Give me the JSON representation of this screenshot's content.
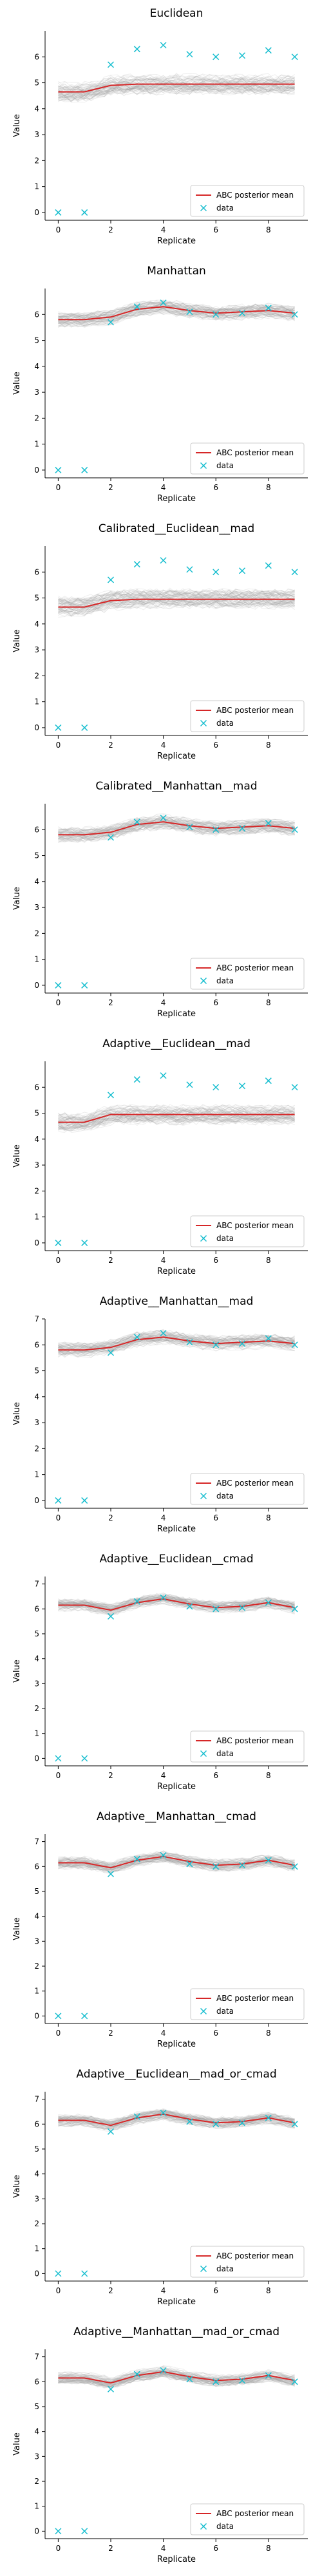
{
  "chart_data": [
    {
      "type": "line",
      "title": "Euclidean",
      "xlabel": "Replicate",
      "ylabel": "Value",
      "x": [
        0,
        1,
        2,
        3,
        4,
        5,
        6,
        7,
        8,
        9
      ],
      "xlim": [
        -0.5,
        9.5
      ],
      "ylim": [
        -0.3,
        7.0
      ],
      "xticks": [
        0,
        2,
        4,
        6,
        8
      ],
      "yticks": [
        0,
        1,
        2,
        3,
        4,
        5,
        6
      ],
      "series": [
        {
          "name": "ABC posterior mean",
          "values": [
            4.65,
            4.65,
            4.9,
            4.95,
            4.95,
            4.95,
            4.95,
            4.95,
            4.95,
            4.95
          ]
        },
        {
          "name": "data",
          "values": [
            0,
            0,
            5.7,
            6.3,
            6.45,
            6.1,
            6.0,
            6.05,
            6.25,
            6.0
          ]
        }
      ],
      "band": {
        "spread": 0.4
      },
      "grid": false,
      "legend": "lower-right"
    },
    {
      "type": "line",
      "title": "Manhattan",
      "xlabel": "Replicate",
      "ylabel": "Value",
      "x": [
        0,
        1,
        2,
        3,
        4,
        5,
        6,
        7,
        8,
        9
      ],
      "xlim": [
        -0.5,
        9.5
      ],
      "ylim": [
        -0.3,
        7.0
      ],
      "xticks": [
        0,
        2,
        4,
        6,
        8
      ],
      "yticks": [
        0,
        1,
        2,
        3,
        4,
        5,
        6
      ],
      "series": [
        {
          "name": "ABC posterior mean",
          "values": [
            5.8,
            5.8,
            5.9,
            6.2,
            6.3,
            6.15,
            6.05,
            6.1,
            6.15,
            6.05
          ]
        },
        {
          "name": "data",
          "values": [
            0,
            0,
            5.7,
            6.3,
            6.45,
            6.1,
            6.0,
            6.05,
            6.25,
            6.0
          ]
        }
      ],
      "band": {
        "spread": 0.3
      },
      "grid": false,
      "legend": "lower-right"
    },
    {
      "type": "line",
      "title": "Calibrated__Euclidean__mad",
      "xlabel": "Replicate",
      "ylabel": "Value",
      "x": [
        0,
        1,
        2,
        3,
        4,
        5,
        6,
        7,
        8,
        9
      ],
      "xlim": [
        -0.5,
        9.5
      ],
      "ylim": [
        -0.3,
        7.0
      ],
      "xticks": [
        0,
        2,
        4,
        6,
        8
      ],
      "yticks": [
        0,
        1,
        2,
        3,
        4,
        5,
        6
      ],
      "series": [
        {
          "name": "ABC posterior mean",
          "values": [
            4.65,
            4.65,
            4.9,
            4.95,
            4.95,
            4.95,
            4.95,
            4.95,
            4.95,
            4.95
          ]
        },
        {
          "name": "data",
          "values": [
            0,
            0,
            5.7,
            6.3,
            6.45,
            6.1,
            6.0,
            6.05,
            6.25,
            6.0
          ]
        }
      ],
      "band": {
        "spread": 0.4
      },
      "grid": false,
      "legend": "lower-right"
    },
    {
      "type": "line",
      "title": "Calibrated__Manhattan__mad",
      "xlabel": "Replicate",
      "ylabel": "Value",
      "x": [
        0,
        1,
        2,
        3,
        4,
        5,
        6,
        7,
        8,
        9
      ],
      "xlim": [
        -0.5,
        9.5
      ],
      "ylim": [
        -0.3,
        7.0
      ],
      "xticks": [
        0,
        2,
        4,
        6,
        8
      ],
      "yticks": [
        0,
        1,
        2,
        3,
        4,
        5,
        6
      ],
      "series": [
        {
          "name": "ABC posterior mean",
          "values": [
            5.8,
            5.8,
            5.9,
            6.2,
            6.3,
            6.15,
            6.05,
            6.1,
            6.15,
            6.05
          ]
        },
        {
          "name": "data",
          "values": [
            0,
            0,
            5.7,
            6.3,
            6.45,
            6.1,
            6.0,
            6.05,
            6.25,
            6.0
          ]
        }
      ],
      "band": {
        "spread": 0.3
      },
      "grid": false,
      "legend": "lower-right"
    },
    {
      "type": "line",
      "title": "Adaptive__Euclidean__mad",
      "xlabel": "Replicate",
      "ylabel": "Value",
      "x": [
        0,
        1,
        2,
        3,
        4,
        5,
        6,
        7,
        8,
        9
      ],
      "xlim": [
        -0.5,
        9.5
      ],
      "ylim": [
        -0.3,
        7.0
      ],
      "xticks": [
        0,
        2,
        4,
        6,
        8
      ],
      "yticks": [
        0,
        1,
        2,
        3,
        4,
        5,
        6
      ],
      "series": [
        {
          "name": "ABC posterior mean",
          "values": [
            4.65,
            4.65,
            4.95,
            4.95,
            4.95,
            4.95,
            4.95,
            4.95,
            4.95,
            4.95
          ]
        },
        {
          "name": "data",
          "values": [
            0,
            0,
            5.7,
            6.3,
            6.45,
            6.1,
            6.0,
            6.05,
            6.25,
            6.0
          ]
        }
      ],
      "band": {
        "spread": 0.4
      },
      "grid": false,
      "legend": "lower-right"
    },
    {
      "type": "line",
      "title": "Adaptive__Manhattan__mad",
      "xlabel": "Replicate",
      "ylabel": "Value",
      "x": [
        0,
        1,
        2,
        3,
        4,
        5,
        6,
        7,
        8,
        9
      ],
      "xlim": [
        -0.5,
        9.5
      ],
      "ylim": [
        -0.3,
        7.0
      ],
      "xticks": [
        0,
        2,
        4,
        6,
        8
      ],
      "yticks": [
        0,
        1,
        2,
        3,
        4,
        5,
        6,
        7
      ],
      "series": [
        {
          "name": "ABC posterior mean",
          "values": [
            5.8,
            5.8,
            5.9,
            6.2,
            6.3,
            6.15,
            6.05,
            6.1,
            6.15,
            6.05
          ]
        },
        {
          "name": "data",
          "values": [
            0,
            0,
            5.7,
            6.3,
            6.45,
            6.1,
            6.0,
            6.05,
            6.25,
            6.0
          ]
        }
      ],
      "band": {
        "spread": 0.3
      },
      "grid": false,
      "legend": "lower-right"
    },
    {
      "type": "line",
      "title": "Adaptive__Euclidean__cmad",
      "xlabel": "Replicate",
      "ylabel": "Value",
      "x": [
        0,
        1,
        2,
        3,
        4,
        5,
        6,
        7,
        8,
        9
      ],
      "xlim": [
        -0.5,
        9.5
      ],
      "ylim": [
        -0.3,
        7.3
      ],
      "xticks": [
        0,
        2,
        4,
        6,
        8
      ],
      "yticks": [
        0,
        1,
        2,
        3,
        4,
        5,
        6,
        7
      ],
      "series": [
        {
          "name": "ABC posterior mean",
          "values": [
            6.15,
            6.15,
            5.95,
            6.25,
            6.4,
            6.2,
            6.05,
            6.1,
            6.25,
            6.05
          ]
        },
        {
          "name": "data",
          "values": [
            0,
            0,
            5.7,
            6.3,
            6.45,
            6.1,
            6.0,
            6.05,
            6.25,
            6.0
          ]
        }
      ],
      "band": {
        "spread": 0.25
      },
      "grid": false,
      "legend": "lower-right"
    },
    {
      "type": "line",
      "title": "Adaptive__Manhattan__cmad",
      "xlabel": "Replicate",
      "ylabel": "Value",
      "x": [
        0,
        1,
        2,
        3,
        4,
        5,
        6,
        7,
        8,
        9
      ],
      "xlim": [
        -0.5,
        9.5
      ],
      "ylim": [
        -0.3,
        7.3
      ],
      "xticks": [
        0,
        2,
        4,
        6,
        8
      ],
      "yticks": [
        0,
        1,
        2,
        3,
        4,
        5,
        6,
        7
      ],
      "series": [
        {
          "name": "ABC posterior mean",
          "values": [
            6.15,
            6.15,
            5.95,
            6.25,
            6.4,
            6.2,
            6.05,
            6.1,
            6.25,
            6.05
          ]
        },
        {
          "name": "data",
          "values": [
            0,
            0,
            5.7,
            6.3,
            6.45,
            6.1,
            6.0,
            6.05,
            6.25,
            6.0
          ]
        }
      ],
      "band": {
        "spread": 0.25
      },
      "grid": false,
      "legend": "lower-right"
    },
    {
      "type": "line",
      "title": "Adaptive__Euclidean__mad_or_cmad",
      "xlabel": "Replicate",
      "ylabel": "Value",
      "x": [
        0,
        1,
        2,
        3,
        4,
        5,
        6,
        7,
        8,
        9
      ],
      "xlim": [
        -0.5,
        9.5
      ],
      "ylim": [
        -0.3,
        7.3
      ],
      "xticks": [
        0,
        2,
        4,
        6,
        8
      ],
      "yticks": [
        0,
        1,
        2,
        3,
        4,
        5,
        6,
        7
      ],
      "series": [
        {
          "name": "ABC posterior mean",
          "values": [
            6.15,
            6.15,
            5.95,
            6.25,
            6.4,
            6.2,
            6.05,
            6.1,
            6.25,
            6.05
          ]
        },
        {
          "name": "data",
          "values": [
            0,
            0,
            5.7,
            6.3,
            6.45,
            6.1,
            6.0,
            6.05,
            6.25,
            6.0
          ]
        }
      ],
      "band": {
        "spread": 0.25
      },
      "grid": false,
      "legend": "lower-right"
    },
    {
      "type": "line",
      "title": "Adaptive__Manhattan__mad_or_cmad",
      "xlabel": "Replicate",
      "ylabel": "Value",
      "x": [
        0,
        1,
        2,
        3,
        4,
        5,
        6,
        7,
        8,
        9
      ],
      "xlim": [
        -0.5,
        9.5
      ],
      "ylim": [
        -0.3,
        7.3
      ],
      "xticks": [
        0,
        2,
        4,
        6,
        8
      ],
      "yticks": [
        0,
        1,
        2,
        3,
        4,
        5,
        6,
        7
      ],
      "series": [
        {
          "name": "ABC posterior mean",
          "values": [
            6.15,
            6.15,
            5.95,
            6.25,
            6.4,
            6.2,
            6.05,
            6.1,
            6.25,
            6.05
          ]
        },
        {
          "name": "data",
          "values": [
            0,
            0,
            5.7,
            6.3,
            6.45,
            6.1,
            6.0,
            6.05,
            6.25,
            6.0
          ]
        }
      ],
      "band": {
        "spread": 0.25
      },
      "grid": false,
      "legend": "lower-right"
    }
  ],
  "colors": {
    "mean_line": "#d62728",
    "data_marker": "#17becf",
    "band": "#9e9e9e",
    "axis": "#000000"
  }
}
